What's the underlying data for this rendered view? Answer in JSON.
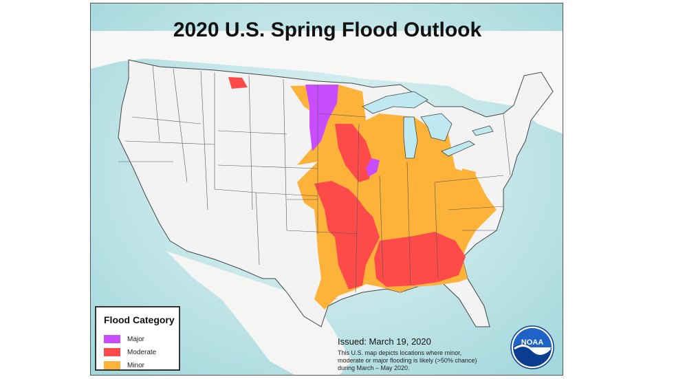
{
  "title": "2020 U.S. Spring Flood Outlook",
  "legend": {
    "title": "Flood Category",
    "items": [
      {
        "label": "Major",
        "color": "#c94cff"
      },
      {
        "label": "Moderate",
        "color": "#ff4a4a"
      },
      {
        "label": "Minor",
        "color": "#fdb23a"
      }
    ]
  },
  "issued": "Issued:  March 19, 2020",
  "note": "This U.S. map depicts locations where minor, moderate or major flooding is likely (>50% chance) during March – May 2020.",
  "logo_text": "NOAA",
  "colors": {
    "ocean": "#cfeaec",
    "land": "#f3f3f3",
    "great_lakes": "#bfe9f1",
    "state_lines": "#555555"
  }
}
